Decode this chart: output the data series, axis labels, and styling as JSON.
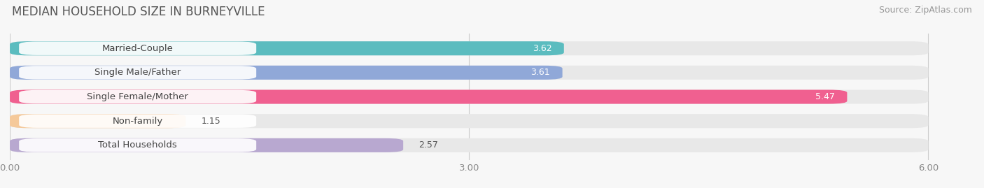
{
  "title": "MEDIAN HOUSEHOLD SIZE IN BURNEYVILLE",
  "source": "Source: ZipAtlas.com",
  "categories": [
    "Married-Couple",
    "Single Male/Father",
    "Single Female/Mother",
    "Non-family",
    "Total Households"
  ],
  "values": [
    3.62,
    3.61,
    5.47,
    1.15,
    2.57
  ],
  "bar_colors": [
    "#5bbcbf",
    "#90a8d8",
    "#f06090",
    "#f5c99a",
    "#b8a8d0"
  ],
  "xlim": [
    0,
    6.3
  ],
  "xticks": [
    0.0,
    3.0,
    6.0
  ],
  "xtick_labels": [
    "0.00",
    "3.00",
    "6.00"
  ],
  "title_fontsize": 12,
  "label_fontsize": 9.5,
  "value_fontsize": 9,
  "background_color": "#f7f7f7",
  "bar_bg_color": "#e8e8e8",
  "source_fontsize": 9
}
